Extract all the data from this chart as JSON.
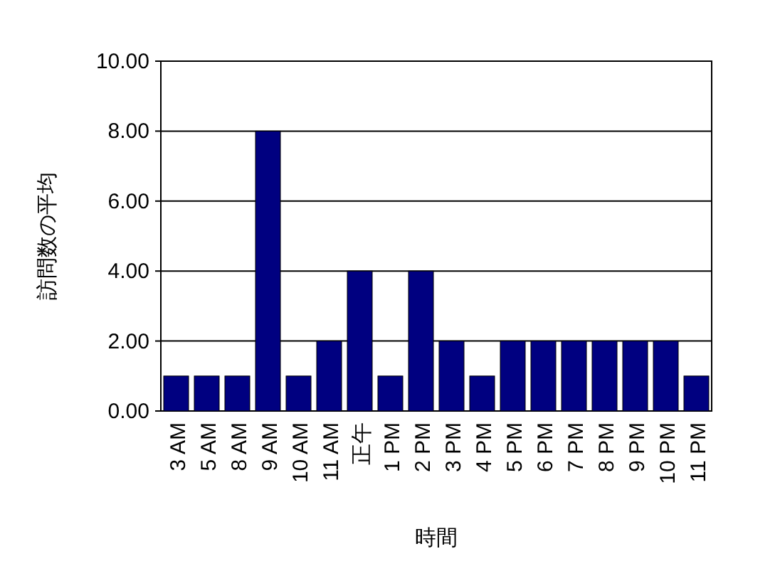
{
  "chart_data": {
    "type": "bar",
    "xlabel": "時間",
    "ylabel": "訪問数の平均",
    "categories": [
      "3 AM",
      "5 AM",
      "8 AM",
      "9 AM",
      "10 AM",
      "11 AM",
      "正午",
      "1 PM",
      "2 PM",
      "3 PM",
      "4 PM",
      "5 PM",
      "6 PM",
      "7 PM",
      "8 PM",
      "9 PM",
      "10 PM",
      "11 PM"
    ],
    "values": [
      1,
      1,
      1,
      8,
      1,
      2,
      4,
      1,
      4,
      2,
      1,
      2,
      2,
      2,
      2,
      2,
      2,
      1
    ],
    "color": "#000080",
    "ylim": [
      0,
      10
    ],
    "yticks": [
      {
        "value": 0,
        "label": "0.00"
      },
      {
        "value": 2,
        "label": "2.00"
      },
      {
        "value": 4,
        "label": "4.00"
      },
      {
        "value": 6,
        "label": "6.00"
      },
      {
        "value": 8,
        "label": "8.00"
      },
      {
        "value": 10,
        "label": "10.00"
      }
    ],
    "grid": "y"
  }
}
